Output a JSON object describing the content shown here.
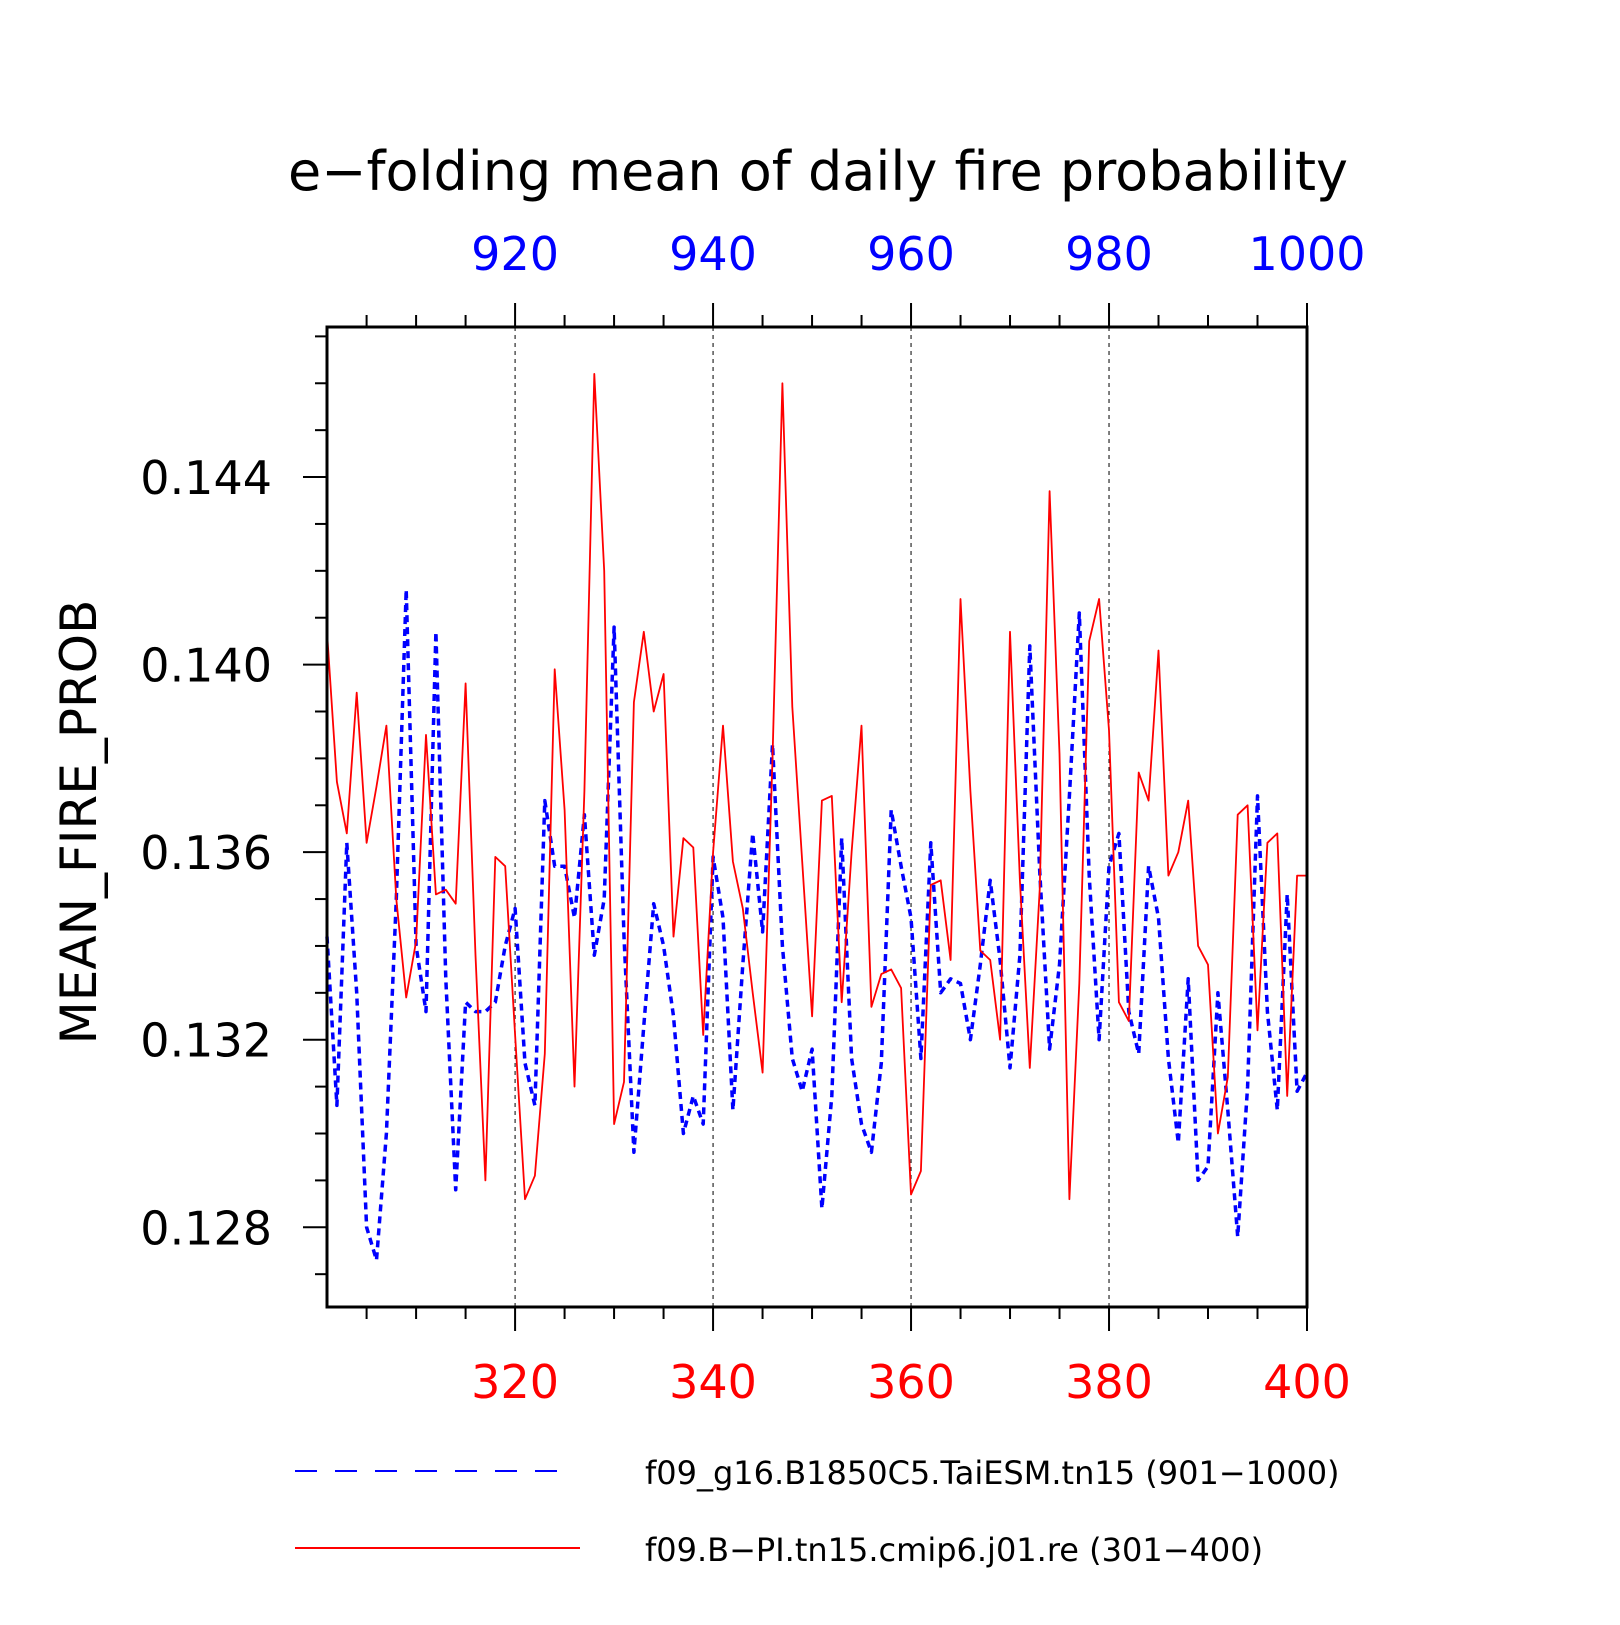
{
  "chart_data": {
    "type": "line",
    "title": "e−folding mean of daily fire probability",
    "ylabel": "MEAN_FIRE_PROB",
    "ylim": [
      0.1263,
      0.1472
    ],
    "yticks_major": [
      "0.128",
      "0.132",
      "0.136",
      "0.140",
      "0.144"
    ],
    "x_bottom": {
      "range": [
        301,
        400
      ],
      "ticks": [
        "320",
        "340",
        "360",
        "380",
        "400"
      ],
      "color": "#ff0000"
    },
    "x_top": {
      "range": [
        901,
        1000
      ],
      "ticks": [
        "920",
        "940",
        "960",
        "980",
        "1000"
      ],
      "color": "#0000ff"
    },
    "grid": "vertical dotted at major x ticks",
    "legend_position": "bottom",
    "series": [
      {
        "name": "f09_g16.B1850C5.TaiESM.tn15 (901−1000)",
        "color": "#0000ff",
        "style": "dashed",
        "x": [
          901,
          902,
          903,
          904,
          905,
          906,
          907,
          908,
          909,
          910,
          911,
          912,
          913,
          914,
          915,
          916,
          917,
          918,
          919,
          920,
          921,
          922,
          923,
          924,
          925,
          926,
          927,
          928,
          929,
          930,
          931,
          932,
          933,
          934,
          935,
          936,
          937,
          938,
          939,
          940,
          941,
          942,
          943,
          944,
          945,
          946,
          947,
          948,
          949,
          950,
          951,
          952,
          953,
          954,
          955,
          956,
          957,
          958,
          959,
          960,
          961,
          962,
          963,
          964,
          965,
          966,
          967,
          968,
          969,
          970,
          971,
          972,
          973,
          974,
          975,
          976,
          977,
          978,
          979,
          980,
          981,
          982,
          983,
          984,
          985,
          986,
          987,
          988,
          989,
          990,
          991,
          992,
          993,
          994,
          995,
          996,
          997,
          998,
          999,
          1000
        ],
        "values": [
          0.1342,
          0.1306,
          0.1362,
          0.133,
          0.128,
          0.1273,
          0.13,
          0.135,
          0.1416,
          0.134,
          0.1326,
          0.1407,
          0.1333,
          0.1288,
          0.1328,
          0.1326,
          0.1326,
          0.1328,
          0.134,
          0.1348,
          0.1315,
          0.1306,
          0.1371,
          0.1357,
          0.1357,
          0.1346,
          0.1368,
          0.1338,
          0.135,
          0.1408,
          0.1342,
          0.1296,
          0.1323,
          0.1349,
          0.134,
          0.1325,
          0.13,
          0.1308,
          0.1302,
          0.1359,
          0.1346,
          0.1305,
          0.1336,
          0.1364,
          0.1343,
          0.1383,
          0.134,
          0.1316,
          0.1309,
          0.1318,
          0.1284,
          0.1308,
          0.1363,
          0.1316,
          0.1302,
          0.1296,
          0.1315,
          0.1369,
          0.1357,
          0.1346,
          0.1316,
          0.1362,
          0.133,
          0.1333,
          0.1332,
          0.132,
          0.1336,
          0.1354,
          0.1337,
          0.1314,
          0.1338,
          0.1404,
          0.1356,
          0.1318,
          0.1336,
          0.1372,
          0.1411,
          0.1355,
          0.132,
          0.1357,
          0.1364,
          0.1326,
          0.1317,
          0.1357,
          0.1346,
          0.1316,
          0.1298,
          0.1333,
          0.129,
          0.1293,
          0.133,
          0.1305,
          0.1278,
          0.131,
          0.1372,
          0.1326,
          0.1305,
          0.1351,
          0.1309,
          0.1313
        ]
      },
      {
        "name": "f09.B−PI.tn15.cmip6.j01.re (301−400)",
        "color": "#ff0000",
        "style": "solid",
        "x": [
          301,
          302,
          303,
          304,
          305,
          306,
          307,
          308,
          309,
          310,
          311,
          312,
          313,
          314,
          315,
          316,
          317,
          318,
          319,
          320,
          321,
          322,
          323,
          324,
          325,
          326,
          327,
          328,
          329,
          330,
          331,
          332,
          333,
          334,
          335,
          336,
          337,
          338,
          339,
          340,
          341,
          342,
          343,
          344,
          345,
          346,
          347,
          348,
          349,
          350,
          351,
          352,
          353,
          354,
          355,
          356,
          357,
          358,
          359,
          360,
          361,
          362,
          363,
          364,
          365,
          366,
          367,
          368,
          369,
          370,
          371,
          372,
          373,
          374,
          375,
          376,
          377,
          378,
          379,
          380,
          381,
          382,
          383,
          384,
          385,
          386,
          387,
          388,
          389,
          390,
          391,
          392,
          393,
          394,
          395,
          396,
          397,
          398,
          399,
          400
        ],
        "values": [
          0.1407,
          0.1375,
          0.1364,
          0.1394,
          0.1362,
          0.1374,
          0.1387,
          0.135,
          0.1329,
          0.1341,
          0.1385,
          0.1351,
          0.1352,
          0.1349,
          0.1396,
          0.1338,
          0.129,
          0.1359,
          0.1357,
          0.1321,
          0.1286,
          0.1291,
          0.1317,
          0.1399,
          0.1369,
          0.131,
          0.1373,
          0.1462,
          0.142,
          0.1302,
          0.1311,
          0.1392,
          0.1407,
          0.139,
          0.1398,
          0.1342,
          0.1363,
          0.1361,
          0.1321,
          0.136,
          0.1387,
          0.1358,
          0.1348,
          0.133,
          0.1313,
          0.138,
          0.146,
          0.1391,
          0.1358,
          0.1325,
          0.1371,
          0.1372,
          0.1328,
          0.136,
          0.1387,
          0.1327,
          0.1334,
          0.1335,
          0.1331,
          0.1287,
          0.1292,
          0.1353,
          0.1354,
          0.1337,
          0.1414,
          0.1373,
          0.1339,
          0.1337,
          0.132,
          0.1407,
          0.1354,
          0.1314,
          0.1352,
          0.1437,
          0.1381,
          0.1286,
          0.1332,
          0.1405,
          0.1414,
          0.1386,
          0.1328,
          0.1324,
          0.1377,
          0.1371,
          0.1403,
          0.1355,
          0.136,
          0.1371,
          0.134,
          0.1336,
          0.13,
          0.1312,
          0.1368,
          0.137,
          0.1322,
          0.1362,
          0.1364,
          0.1308,
          0.1355,
          0.1355
        ]
      }
    ]
  }
}
